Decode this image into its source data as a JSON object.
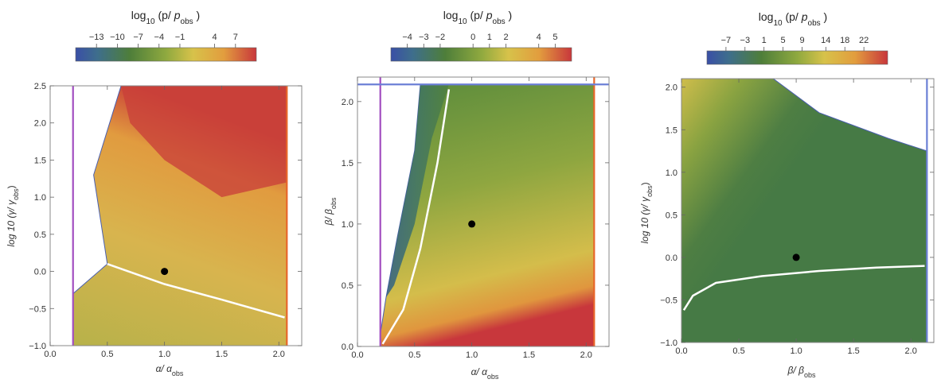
{
  "chart_data": [
    {
      "type": "heatmap",
      "colorbar": {
        "title": {
          "main": "log",
          "sub": "10",
          "open": " (p/ ",
          "p": "p",
          "psub": "obs",
          "close": " )"
        },
        "range": [
          -16,
          10
        ],
        "ticks": [
          -13,
          -10,
          -7,
          -4,
          -1,
          4,
          7
        ],
        "tick_labels": [
          "−13",
          "−10",
          "−7",
          "−4",
          "−1",
          "4",
          "7"
        ]
      },
      "xlabel": {
        "main": "α/ α",
        "sub": "obs"
      },
      "ylabel": {
        "main": "log 10 (γ/ γ",
        "sub": "obs",
        "close": ")"
      },
      "xlim": [
        0.0,
        2.2
      ],
      "ylim": [
        -1.0,
        2.5
      ],
      "x_ticks": [
        "0.0",
        "0.5",
        "1.0",
        "1.5",
        "2.0"
      ],
      "y_ticks": [
        "−1.0",
        "−0.5",
        "0.0",
        "0.5",
        "1.0",
        "1.5",
        "2.0",
        "2.5"
      ],
      "x_tick_values": [
        0,
        0.5,
        1.0,
        1.5,
        2.0
      ],
      "y_tick_values": [
        -1.0,
        -0.5,
        0,
        0.5,
        1.0,
        1.5,
        2.0,
        2.5
      ],
      "region_boundary": [
        [
          0.2,
          -1.0
        ],
        [
          2.07,
          -1.0
        ],
        [
          2.07,
          2.5
        ],
        [
          0.62,
          2.5
        ],
        [
          0.38,
          1.3
        ],
        [
          0.5,
          0.1
        ],
        [
          0.2,
          -0.3
        ]
      ],
      "high_region": [
        [
          0.62,
          2.5
        ],
        [
          2.07,
          2.5
        ],
        [
          2.07,
          1.2
        ],
        [
          1.5,
          1.0
        ],
        [
          1.0,
          1.5
        ],
        [
          0.7,
          2.0
        ]
      ],
      "white_curve": [
        [
          0.5,
          0.1
        ],
        [
          1.0,
          -0.17
        ],
        [
          1.5,
          -0.38
        ],
        [
          2.05,
          -0.62
        ]
      ],
      "point": [
        1.0,
        0.0
      ],
      "vlines": [
        {
          "x": 0.2,
          "color": "#a24ec0"
        },
        {
          "x": 2.07,
          "color": "#e8662a"
        }
      ],
      "hlines": []
    },
    {
      "type": "heatmap",
      "colorbar": {
        "title": {
          "main": "log",
          "sub": "10",
          "open": " (p/ ",
          "p": "p",
          "psub": "obs",
          "close": " )"
        },
        "range": [
          -5,
          6
        ],
        "ticks": [
          -4,
          -3,
          -2,
          0,
          1,
          2,
          4,
          5
        ],
        "tick_labels": [
          "−4",
          "−3",
          "−2",
          "0",
          "1",
          "2",
          "4",
          "5"
        ]
      },
      "xlabel": {
        "main": "α/ α",
        "sub": "obs"
      },
      "ylabel": {
        "main": "β/ β",
        "sub": "obs",
        "close": ""
      },
      "xlim": [
        0.0,
        2.2
      ],
      "ylim": [
        0.0,
        2.2
      ],
      "x_ticks": [
        "0.0",
        "0.5",
        "1.0",
        "1.5",
        "2.0"
      ],
      "y_ticks": [
        "0.0",
        "0.5",
        "1.0",
        "1.5",
        "2.0"
      ],
      "x_tick_values": [
        0,
        0.5,
        1.0,
        1.5,
        2.0
      ],
      "y_tick_values": [
        0,
        0.5,
        1.0,
        1.5,
        2.0
      ],
      "region_boundary": [
        [
          0.2,
          0.0
        ],
        [
          2.07,
          0.0
        ],
        [
          2.07,
          2.14
        ],
        [
          0.55,
          2.14
        ],
        [
          0.5,
          1.6
        ],
        [
          0.35,
          0.9
        ],
        [
          0.25,
          0.4
        ],
        [
          0.2,
          0.1
        ]
      ],
      "low_region": [
        [
          0.55,
          2.14
        ],
        [
          0.5,
          1.6
        ],
        [
          0.35,
          0.9
        ],
        [
          0.25,
          0.4
        ],
        [
          0.32,
          0.5
        ],
        [
          0.5,
          1.0
        ],
        [
          0.65,
          1.7
        ],
        [
          0.8,
          2.14
        ]
      ],
      "white_curve": [
        [
          0.22,
          0.02
        ],
        [
          0.4,
          0.3
        ],
        [
          0.55,
          0.8
        ],
        [
          0.7,
          1.5
        ],
        [
          0.8,
          2.1
        ]
      ],
      "point": [
        1.0,
        1.0
      ],
      "vlines": [
        {
          "x": 0.2,
          "color": "#a24ec0"
        },
        {
          "x": 2.07,
          "color": "#e8662a"
        }
      ],
      "hlines": [
        {
          "y": 2.14,
          "color": "#6b7fd6"
        }
      ]
    },
    {
      "type": "heatmap",
      "colorbar": {
        "title": {
          "main": "log",
          "sub": "10",
          "open": " (p/ ",
          "p": "p",
          "psub": "obs",
          "close": " )"
        },
        "range": [
          -11,
          27
        ],
        "ticks": [
          -7,
          -3,
          1,
          5,
          9,
          14,
          18,
          22
        ],
        "tick_labels": [
          "−7",
          "−3",
          "1",
          "5",
          "9",
          "14",
          "18",
          "22"
        ]
      },
      "xlabel": {
        "main": "β/ β",
        "sub": "obs"
      },
      "ylabel": {
        "main": "log 10 (γ/ γ",
        "sub": "obs",
        "close": ")"
      },
      "xlim": [
        0.0,
        2.2
      ],
      "ylim": [
        -1.0,
        2.1
      ],
      "x_ticks": [
        "0.0",
        "0.5",
        "1.0",
        "1.5",
        "2.0"
      ],
      "y_ticks": [
        "−1.0",
        "−0.5",
        "0.0",
        "0.5",
        "1.0",
        "1.5",
        "2.0"
      ],
      "x_tick_values": [
        0,
        0.5,
        1.0,
        1.5,
        2.0
      ],
      "y_tick_values": [
        -1.0,
        -0.5,
        0,
        0.5,
        1.0,
        1.5,
        2.0
      ],
      "region_boundary": [
        [
          0.0,
          -1.0
        ],
        [
          2.14,
          -1.0
        ],
        [
          2.14,
          1.25
        ],
        [
          1.8,
          1.4
        ],
        [
          1.2,
          1.7
        ],
        [
          0.8,
          2.1
        ],
        [
          0.0,
          2.1
        ]
      ],
      "white_curve": [
        [
          0.02,
          -0.62
        ],
        [
          0.1,
          -0.45
        ],
        [
          0.3,
          -0.3
        ],
        [
          0.7,
          -0.22
        ],
        [
          1.2,
          -0.16
        ],
        [
          1.7,
          -0.12
        ],
        [
          2.12,
          -0.1
        ]
      ],
      "point": [
        1.0,
        0.0
      ],
      "vlines": [
        {
          "x": 2.14,
          "color": "#6b7fd6"
        }
      ],
      "hlines": []
    }
  ]
}
